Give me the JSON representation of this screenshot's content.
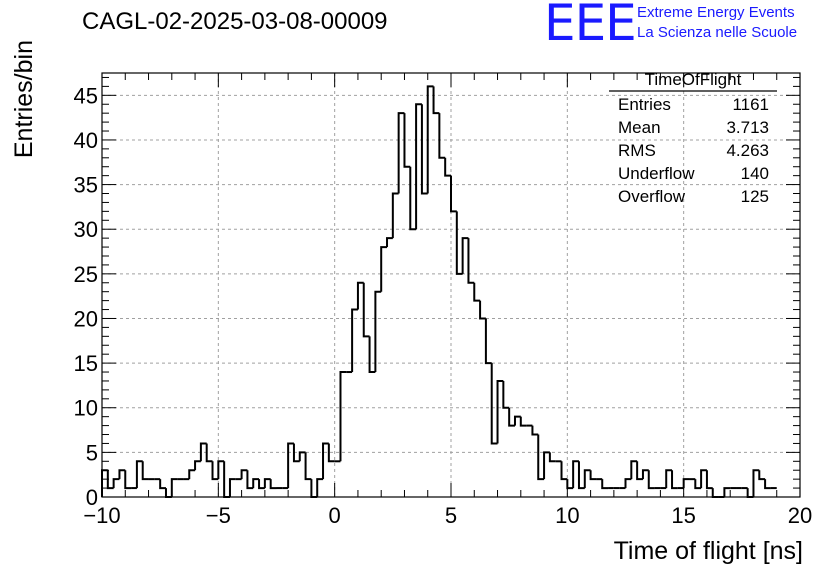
{
  "header": {
    "title": "CAGL-02-2025-03-08-00009",
    "logo": "EEE",
    "org_line1": "Extreme Energy Events",
    "org_line2": "La Scienza nelle Scuole"
  },
  "stats": {
    "name": "TimeOfFlight",
    "rows": [
      {
        "label": "Entries",
        "value": "1161"
      },
      {
        "label": "Mean",
        "value": "3.713"
      },
      {
        "label": "RMS",
        "value": "4.263"
      },
      {
        "label": "Underflow",
        "value": "140"
      },
      {
        "label": "Overflow",
        "value": "125"
      }
    ]
  },
  "colors": {
    "line": "#000000",
    "grid": "#a0a0a0",
    "brand": "#1a1aff"
  },
  "chart_data": {
    "type": "histogram",
    "title": "CAGL-02-2025-03-08-00009",
    "xlabel": "Time of flight [ns]",
    "ylabel": "Entries/bin",
    "xlim": [
      -10,
      20
    ],
    "ylim": [
      0,
      47.5
    ],
    "grid": true,
    "bin_width": 0.25,
    "xticks": [
      -10,
      -5,
      0,
      5,
      10,
      15,
      20
    ],
    "xtick_labels": [
      "−10",
      "−5",
      "0",
      "5",
      "10",
      "15",
      "20"
    ],
    "yticks": [
      0,
      5,
      10,
      15,
      20,
      25,
      30,
      35,
      40,
      45
    ],
    "ytick_labels": [
      "0",
      "5",
      "10",
      "15",
      "20",
      "25",
      "30",
      "35",
      "40",
      "45"
    ],
    "values": [
      3,
      1,
      2,
      3,
      1,
      1,
      4,
      2,
      2,
      2,
      1,
      0,
      2,
      2,
      2,
      3,
      4,
      6,
      4,
      2,
      4,
      0,
      2,
      2,
      3,
      1,
      2,
      1,
      2,
      1,
      1,
      1,
      6,
      4,
      5,
      2,
      0,
      2,
      6,
      4,
      4,
      14,
      14,
      21,
      24,
      18,
      14,
      23,
      28,
      29,
      34,
      43,
      37,
      30,
      44,
      34,
      46,
      43,
      38,
      36,
      32,
      25,
      29,
      24,
      22,
      20,
      15,
      6,
      13,
      10,
      8,
      9,
      8,
      8,
      7,
      2,
      5,
      4,
      4,
      2,
      1,
      4,
      1,
      3,
      2,
      2,
      1,
      1,
      1,
      1,
      2,
      4,
      2,
      3,
      1,
      1,
      1,
      3,
      1,
      1,
      2,
      2,
      1,
      3,
      1,
      0,
      0,
      1,
      1,
      1,
      1,
      0,
      3,
      2,
      1,
      1
    ]
  }
}
